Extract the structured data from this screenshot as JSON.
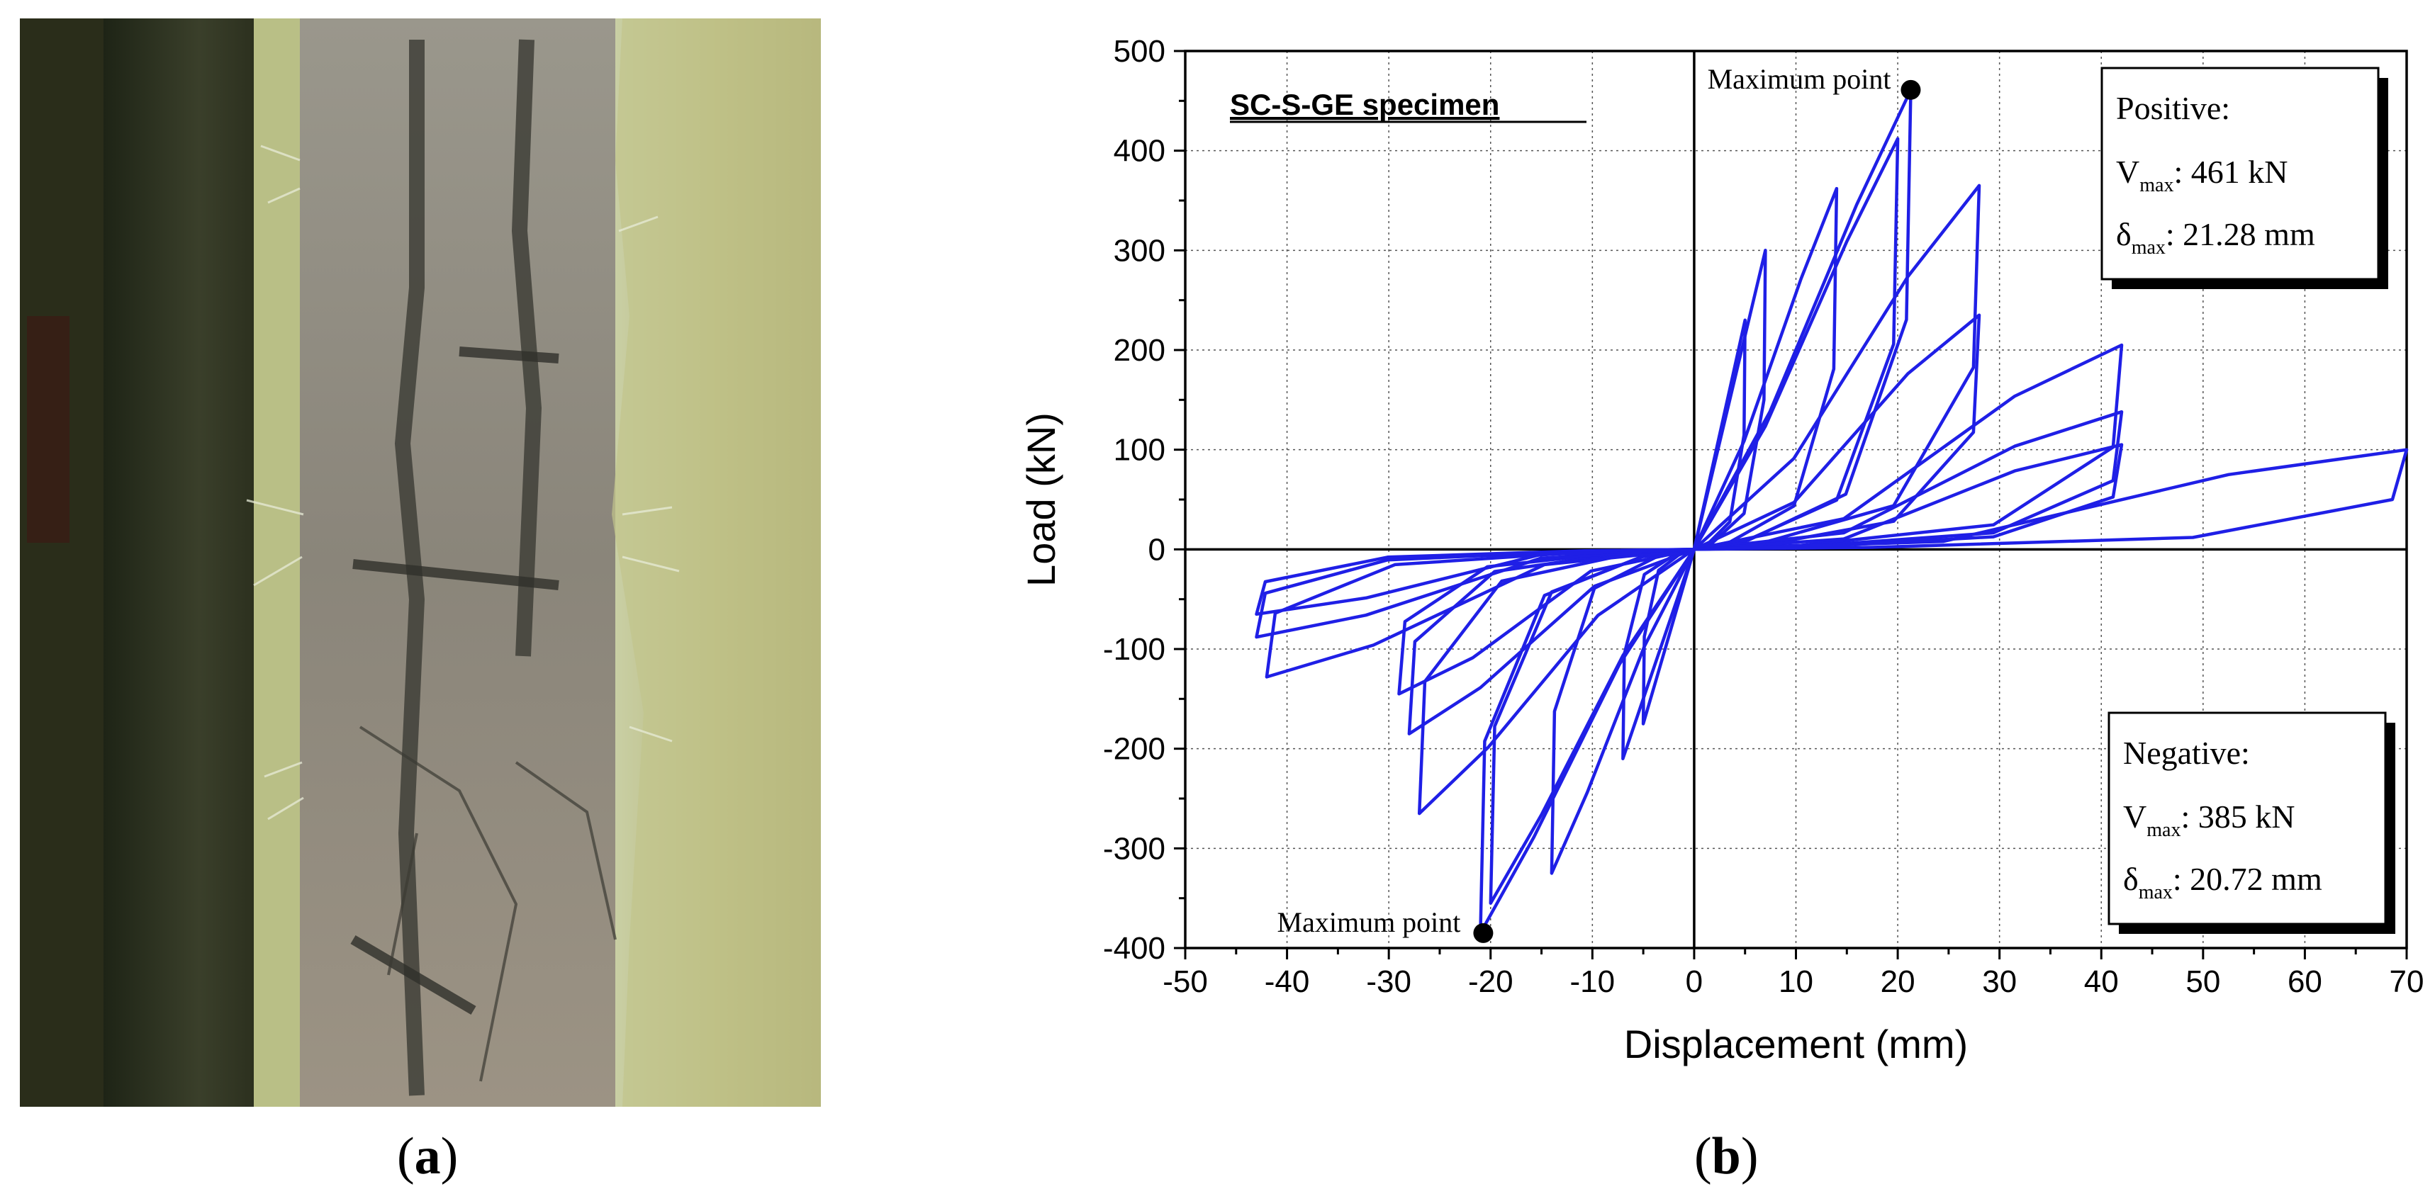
{
  "captions": {
    "a": "a",
    "b": "b"
  },
  "photo": {
    "description_icon": "concrete-column-damage-photo"
  },
  "chart_data": {
    "type": "line",
    "xlabel": "Displacement (mm)",
    "ylabel": "Load (kN)",
    "xlim": [
      -50,
      70
    ],
    "ylim": [
      -400,
      500
    ],
    "xticks": [
      -50,
      -40,
      -30,
      -20,
      -10,
      0,
      10,
      20,
      30,
      40,
      50,
      60,
      70
    ],
    "yticks": [
      -400,
      -300,
      -200,
      -100,
      0,
      100,
      200,
      300,
      400,
      500
    ],
    "grid": true,
    "specimen_label": "SC-S-GE specimen",
    "series_color": "#1f1fe6",
    "max_points": [
      {
        "label": "Maximum point",
        "x": 21.28,
        "y": 461
      },
      {
        "label": "Maximum point",
        "x": -20.72,
        "y": -385
      }
    ],
    "positive_box": {
      "title": "Positive:",
      "vmax_label": "V",
      "vmax_sub": "max",
      "vmax_value": ": 461 kN",
      "dmax_label": "δ",
      "dmax_sub": "max",
      "dmax_value": ": 21.28 mm"
    },
    "negative_box": {
      "title": "Negative:",
      "vmax_label": "V",
      "vmax_sub": "max",
      "vmax_value": ": 385 kN",
      "dmax_label": "δ",
      "dmax_sub": "max",
      "dmax_value": ": 20.72 mm"
    },
    "loops": [
      {
        "peak_pos": [
          5,
          230
        ],
        "peak_neg": [
          -5,
          -175
        ],
        "pinch": 0.35
      },
      {
        "peak_pos": [
          7,
          300
        ],
        "peak_neg": [
          -7,
          -210
        ],
        "pinch": 0.35
      },
      {
        "peak_pos": [
          14,
          362
        ],
        "peak_neg": [
          -14,
          -325
        ],
        "pinch": 0.3
      },
      {
        "peak_pos": [
          20,
          412
        ],
        "peak_neg": [
          -21,
          -385
        ],
        "pinch": 0.3
      },
      {
        "peak_pos": [
          21.28,
          461
        ],
        "peak_neg": [
          -20,
          -355
        ],
        "pinch": 0.3
      },
      {
        "peak_pos": [
          28,
          365
        ],
        "peak_neg": [
          -27,
          -265
        ],
        "pinch": 0.25
      },
      {
        "peak_pos": [
          28,
          235
        ],
        "peak_neg": [
          -28,
          -185
        ],
        "pinch": 0.2
      },
      {
        "peak_pos": [
          42,
          205
        ],
        "peak_neg": [
          -29,
          -145
        ],
        "pinch": 0.15
      },
      {
        "peak_pos": [
          42,
          138
        ],
        "peak_neg": [
          -42,
          -128
        ],
        "pinch": 0.12
      },
      {
        "peak_pos": [
          42,
          105
        ],
        "peak_neg": [
          -43,
          -88
        ],
        "pinch": 0.1
      },
      {
        "peak_pos": [
          70,
          100
        ],
        "peak_neg": [
          -43,
          -65
        ],
        "pinch": 0.08
      }
    ]
  }
}
